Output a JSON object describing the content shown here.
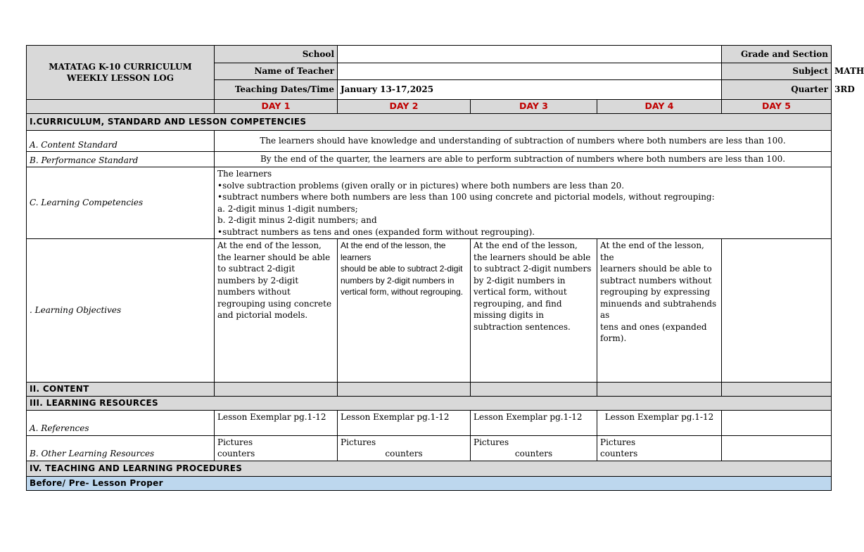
{
  "header": {
    "title_line1": "MATATAG K-10 CURRICULUM",
    "title_line2": "WEEKLY LESSON LOG",
    "school_label": "School",
    "school_value": "",
    "grade_label": "Grade and Section",
    "grade_value": "",
    "teacher_label": "Name of Teacher",
    "teacher_value": "",
    "subject_label": "Subject",
    "subject_value": "MATH",
    "dates_label": "Teaching Dates/Time",
    "dates_value": "January 13-17,2025",
    "quarter_label": "Quarter",
    "quarter_value": "3RD"
  },
  "days": [
    "DAY 1",
    "DAY 2",
    "DAY 3",
    "DAY 4",
    "DAY 5"
  ],
  "section1": {
    "title": "I.CURRICULUM, STANDARD AND LESSON COMPETENCIES",
    "content_standard_label": "A. Content Standard",
    "content_standard": "The learners should have knowledge and understanding of subtraction of numbers where both numbers are less than 100.",
    "performance_standard_label": "B. Performance Standard",
    "performance_standard": "By the end of the quarter, the learners are able to perform subtraction of numbers where both numbers are less than 100.",
    "competencies_label": "C. Learning Competencies",
    "competencies": [
      "The learners",
      "•solve subtraction problems (given orally or in pictures) where both numbers are less than 20.",
      "•subtract numbers where both numbers are less than 100 using concrete and pictorial models, without regrouping:",
      "a. 2-digit minus 1-digit numbers;",
      "b. 2-digit minus 2-digit numbers; and",
      "•subtract numbers as tens and ones (expanded form without regrouping)."
    ],
    "objectives_label": ". Learning Objectives",
    "objectives": [
      "At the end of the lesson, the learner should be able to subtract 2-digit numbers by 2-digit numbers without regrouping using concrete and pictorial models.",
      "At the end of the lesson, the learners\nshould be able to subtract 2-digit\nnumbers by 2-digit numbers in\nvertical form, without regrouping.",
      "At the end of the lesson, the learners\nshould be able to subtract 2-digit numbers by 2-digit numbers in vertical form, without regrouping, and find missing digits in subtraction sentences.",
      "At the end of the lesson, the\nlearners should be able to\nsubtract numbers without\nregrouping by expressing\nminuends and subtrahends as\ntens and ones (expanded form).",
      ""
    ]
  },
  "section2": {
    "title": "II. CONTENT"
  },
  "section3": {
    "title": "III. LEARNING RESOURCES",
    "references_label": "A. References",
    "references": [
      "Lesson Exemplar pg.1-12",
      "Lesson Exemplar pg.1-12",
      "Lesson Exemplar pg.1-12",
      "Lesson Exemplar pg.1-12",
      ""
    ],
    "other_label": "B. Other Learning Resources",
    "other_pictures": [
      "Pictures",
      "Pictures",
      "Pictures",
      "Pictures",
      ""
    ],
    "other_counters": [
      "counters",
      "counters",
      "counters",
      "counters",
      ""
    ]
  },
  "section4": {
    "title": "IV. TEACHING AND LEARNING PROCEDURES",
    "subheading": "Before/ Pre- Lesson Proper"
  }
}
